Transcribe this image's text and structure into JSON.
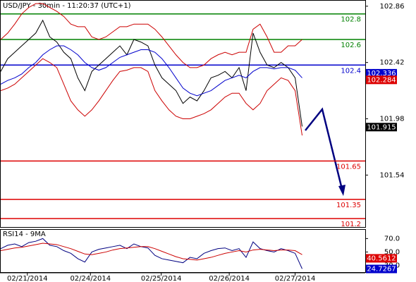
{
  "chart_data": [
    {
      "type": "line",
      "title": "USD/JPY - 30min - 11:20:37 (UTC+1)",
      "xlim": [
        0,
        52
      ],
      "ylim": [
        101.134,
        102.903
      ],
      "yticks": [
        102.86,
        102.42,
        101.98,
        101.54
      ],
      "series": [
        {
          "color": "#000000",
          "values": [
            102.35,
            102.45,
            102.5,
            102.55,
            102.6,
            102.65,
            102.75,
            102.62,
            102.58,
            102.5,
            102.45,
            102.3,
            102.2,
            102.35,
            102.4,
            102.45,
            102.5,
            102.55,
            102.48,
            102.6,
            102.58,
            102.55,
            102.4,
            102.3,
            102.25,
            102.2,
            102.1,
            102.15,
            102.12,
            102.2,
            102.3,
            102.32,
            102.35,
            102.3,
            102.38,
            102.2,
            102.65,
            102.5,
            102.4,
            102.38,
            102.42,
            102.38,
            102.3,
            101.92
          ]
        },
        {
          "color": "#cc0000",
          "values": [
            102.6,
            102.65,
            102.72,
            102.8,
            102.85,
            102.88,
            102.88,
            102.85,
            102.82,
            102.78,
            102.72,
            102.7,
            102.7,
            102.62,
            102.6,
            102.62,
            102.66,
            102.7,
            102.7,
            102.72,
            102.72,
            102.72,
            102.68,
            102.62,
            102.55,
            102.48,
            102.42,
            102.38,
            102.38,
            102.4,
            102.45,
            102.48,
            102.5,
            102.48,
            102.5,
            102.5,
            102.68,
            102.72,
            102.62,
            102.5,
            102.5,
            102.55,
            102.55,
            102.6
          ]
        },
        {
          "color": "#cc0000",
          "values": [
            102.2,
            102.22,
            102.25,
            102.3,
            102.35,
            102.4,
            102.45,
            102.42,
            102.38,
            102.25,
            102.12,
            102.05,
            102.0,
            102.05,
            102.12,
            102.2,
            102.28,
            102.35,
            102.36,
            102.38,
            102.38,
            102.35,
            102.2,
            102.12,
            102.05,
            102.0,
            101.98,
            101.98,
            102.0,
            102.02,
            102.05,
            102.1,
            102.15,
            102.18,
            102.18,
            102.1,
            102.05,
            102.1,
            102.2,
            102.25,
            102.3,
            102.28,
            102.2,
            101.85
          ]
        },
        {
          "color": "#0000cc",
          "values": [
            102.25,
            102.28,
            102.3,
            102.33,
            102.38,
            102.42,
            102.48,
            102.52,
            102.55,
            102.55,
            102.52,
            102.48,
            102.42,
            102.38,
            102.36,
            102.38,
            102.42,
            102.46,
            102.48,
            102.5,
            102.52,
            102.52,
            102.5,
            102.45,
            102.38,
            102.3,
            102.22,
            102.18,
            102.16,
            102.18,
            102.2,
            102.24,
            102.28,
            102.3,
            102.32,
            102.3,
            102.35,
            102.38,
            102.38,
            102.37,
            102.38,
            102.38,
            102.36,
            102.3
          ]
        }
      ],
      "levels": [
        {
          "value": 102.8,
          "color": "#008000"
        },
        {
          "value": 102.6,
          "color": "#008000"
        },
        {
          "value": 102.4,
          "color": "#0000cc"
        },
        {
          "value": 101.65,
          "color": "#dd0000"
        },
        {
          "value": 101.35,
          "color": "#dd0000"
        },
        {
          "value": 101.2,
          "color": "#dd0000"
        }
      ],
      "price_boxes": [
        {
          "value": 102.336,
          "color": "#0000cc"
        },
        {
          "value": 102.284,
          "color": "#dd0000"
        },
        {
          "value": 101.915,
          "color": "#000000"
        }
      ]
    },
    {
      "type": "line",
      "title": "RSI14 - 9MA",
      "xlim": [
        0,
        52
      ],
      "ylim": [
        20,
        83
      ],
      "yticks": [
        {
          "value": 70,
          "label": "70.0"
        },
        {
          "value": 50,
          "label": "50.0"
        },
        {
          "value": 30,
          "label": "30.0"
        }
      ],
      "xticks": [
        {
          "value": 3.8,
          "label": "02/21/2014"
        },
        {
          "value": 12.8,
          "label": "02/24/2014"
        },
        {
          "value": 22.9,
          "label": "02/25/2014"
        },
        {
          "value": 32.6,
          "label": "02/26/2014"
        },
        {
          "value": 42,
          "label": "02/27/2014"
        }
      ],
      "series": [
        {
          "color": "#000080",
          "values": [
            55,
            60,
            62,
            58,
            64,
            66,
            70,
            60,
            58,
            52,
            48,
            40,
            35,
            50,
            54,
            56,
            58,
            60,
            55,
            62,
            58,
            56,
            45,
            40,
            38,
            36,
            34,
            42,
            40,
            48,
            52,
            55,
            56,
            52,
            55,
            42,
            65,
            55,
            52,
            50,
            55,
            52,
            48,
            25
          ]
        },
        {
          "color": "#cc0000",
          "values": [
            52,
            54,
            56,
            57,
            59,
            61,
            63,
            62,
            61,
            58,
            55,
            51,
            47,
            46,
            48,
            50,
            53,
            55,
            56,
            57,
            58,
            58,
            55,
            51,
            47,
            43,
            40,
            39,
            38,
            40,
            42,
            45,
            48,
            50,
            52,
            50,
            53,
            54,
            53,
            52,
            53,
            53,
            52,
            46
          ]
        }
      ],
      "price_boxes": [
        {
          "value": 40.5612,
          "color": "#dd0000"
        },
        {
          "value": 24.7267,
          "color": "#0000cc"
        }
      ]
    }
  ]
}
